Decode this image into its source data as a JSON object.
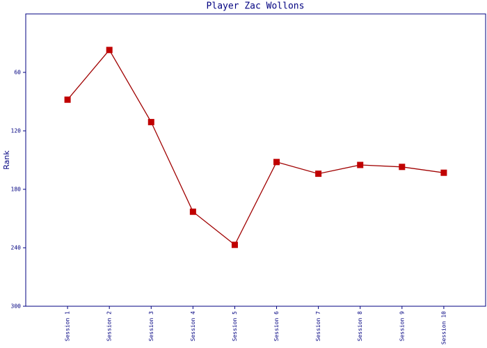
{
  "chart_data": {
    "type": "line",
    "title": "Player Zac Wollons",
    "y_label": "Rank",
    "categories": [
      "Session 1",
      "Session 2",
      "Session 3",
      "Session 4",
      "Session 5",
      "Session 6",
      "Session 7",
      "Session 8",
      "Session 9",
      "Session 10"
    ],
    "series": [
      {
        "name": "Rank",
        "color": "#a00000",
        "marker_color": "#c00000",
        "values": [
          88,
          37,
          111,
          203,
          237,
          152,
          164,
          155,
          157,
          163
        ]
      }
    ],
    "ylim": [
      0,
      300
    ],
    "yticks": [
      60,
      120,
      180,
      240,
      300
    ],
    "y_inverted": true,
    "grid": false
  }
}
